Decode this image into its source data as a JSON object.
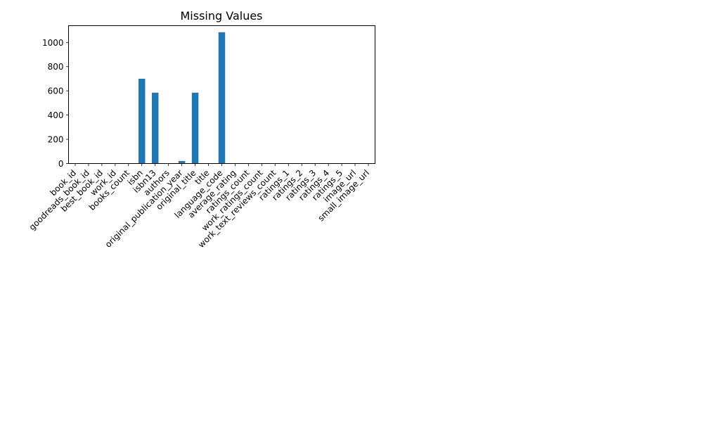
{
  "chart_data": {
    "type": "bar",
    "title": "Missing Values",
    "xlabel": "",
    "ylabel": "",
    "categories": [
      "book_id",
      "goodreads_book_id",
      "best_book_id",
      "work_id",
      "books_count",
      "isbn",
      "isbn13",
      "authors",
      "original_publication_year",
      "original_title",
      "title",
      "language_code",
      "average_rating",
      "ratings_count",
      "work_ratings_count",
      "work_text_reviews_count",
      "ratings_1",
      "ratings_2",
      "ratings_3",
      "ratings_4",
      "ratings_5",
      "image_url",
      "small_image_url"
    ],
    "values": [
      0,
      0,
      0,
      0,
      0,
      700,
      585,
      0,
      21,
      585,
      0,
      1084,
      0,
      0,
      0,
      0,
      0,
      0,
      0,
      0,
      0,
      0,
      0
    ],
    "ylim": [
      0,
      1138
    ],
    "yticks": [
      0,
      200,
      400,
      600,
      800,
      1000
    ],
    "bar_color": "#1f77b4",
    "grid": false,
    "legend": "none"
  }
}
